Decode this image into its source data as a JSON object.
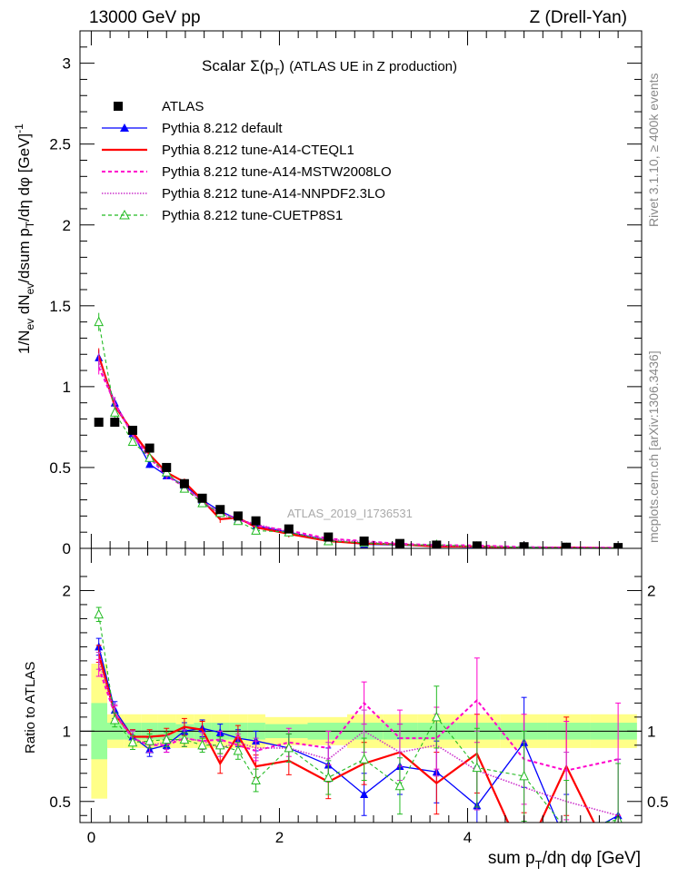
{
  "header": {
    "left": "13000 GeV pp",
    "right": "Z (Drell-Yan)"
  },
  "side": {
    "rivet": "Rivet 3.1.10, ≥ 400k events",
    "mcplots": "mcplots.cern.ch [arXiv:1306.3436]"
  },
  "title": {
    "prefix": "Scalar",
    "sigma": "Σ(p",
    "sub_t": "T",
    "close": ")",
    "suffix": "(ATLAS UE in Z production)"
  },
  "watermark": "ATLAS_2019_I1736531",
  "ylabel_main": {
    "a": "1/N",
    "a_sub": "ev",
    "b": " dN",
    "b_sub": "ev",
    "c": "/dsum p",
    "c_sub": "T",
    "d": "/dη dφ  [GeV]",
    "d_sup": "-1"
  },
  "ylabel_ratio": "Ratio to ATLAS",
  "xlabel": {
    "a": "sum p",
    "a_sub": "T",
    "b": "/dη dφ [GeV]"
  },
  "colors": {
    "atlas": "#000000",
    "default": "#0000ff",
    "cteql1": "#ff0000",
    "mstw": "#ff00cc",
    "nnpdf": "#cc33cc",
    "cuetp8s1": "#22bb22",
    "band_inner": "#99ff99",
    "band_outer": "#ffff88"
  },
  "chart_data": [
    {
      "type": "line",
      "panel": "main",
      "title": "Scalar Σ(pT) (ATLAS UE in Z production)",
      "xlabel": "sum pT/dη dφ [GeV]",
      "ylabel": "1/Nev dNev/dsum pT/dη dφ [GeV]^-1",
      "xlim": [
        -0.12,
        5.85
      ],
      "ylim": [
        0,
        3.2
      ],
      "yticks": [
        0,
        0.5,
        1,
        1.5,
        2,
        2.5,
        3
      ],
      "ytick_labels": [
        "0",
        "0.5",
        "1",
        "1.5",
        "2",
        "2.5",
        "3"
      ],
      "xticks": [
        0,
        2,
        4
      ],
      "x": [
        0.08,
        0.25,
        0.44,
        0.62,
        0.8,
        0.99,
        1.18,
        1.37,
        1.56,
        1.75,
        2.1,
        2.52,
        2.9,
        3.28,
        3.67,
        4.1,
        4.6,
        5.05,
        5.6
      ],
      "legend_position": "top-left",
      "series": [
        {
          "name": "ATLAS",
          "key": "atlas",
          "values": [
            0.78,
            0.78,
            0.73,
            0.62,
            0.5,
            0.4,
            0.31,
            0.24,
            0.2,
            0.17,
            0.12,
            0.07,
            0.045,
            0.03,
            0.02,
            0.015,
            0.01,
            0.007,
            0.005
          ]
        },
        {
          "name": "Pythia 8.212 default",
          "key": "default",
          "values": [
            1.18,
            0.9,
            0.71,
            0.52,
            0.45,
            0.39,
            0.3,
            0.23,
            0.18,
            0.14,
            0.1,
            0.05,
            0.025,
            0.02,
            0.012,
            0.007,
            0.008,
            0.004,
            0.002
          ]
        },
        {
          "name": "Pythia 8.212 tune-A14-CTEQL1",
          "key": "cteql1",
          "values": [
            1.19,
            0.88,
            0.72,
            0.58,
            0.47,
            0.41,
            0.3,
            0.18,
            0.19,
            0.13,
            0.09,
            0.045,
            0.03,
            0.025,
            0.012,
            0.012,
            0.002,
            0.005,
            0.001
          ]
        },
        {
          "name": "Pythia 8.212 tune-A14-MSTW2008LO",
          "key": "mstw",
          "values": [
            1.12,
            0.9,
            0.7,
            0.56,
            0.45,
            0.38,
            0.28,
            0.22,
            0.18,
            0.14,
            0.11,
            0.06,
            0.045,
            0.028,
            0.02,
            0.018,
            0.008,
            0.005,
            0.004
          ]
        },
        {
          "name": "Pythia 8.212 tune-A14-NNPDF2.3LO",
          "key": "nnpdf",
          "values": [
            1.16,
            0.89,
            0.7,
            0.56,
            0.46,
            0.38,
            0.29,
            0.21,
            0.18,
            0.15,
            0.1,
            0.055,
            0.04,
            0.025,
            0.018,
            0.01,
            0.007,
            0.003,
            0.002
          ]
        },
        {
          "name": "Pythia 8.212 tune-CUETP8S1",
          "key": "cuetp8s1",
          "values": [
            1.4,
            0.84,
            0.66,
            0.56,
            0.47,
            0.37,
            0.28,
            0.22,
            0.17,
            0.11,
            0.1,
            0.045,
            0.035,
            0.02,
            0.022,
            0.011,
            0.007,
            0.003,
            0.002
          ]
        }
      ]
    },
    {
      "type": "line",
      "panel": "ratio",
      "ylabel": "Ratio to ATLAS",
      "xlim": [
        -0.12,
        5.85
      ],
      "ylim": [
        0.35,
        2.3
      ],
      "yticks": [
        0.5,
        1,
        2
      ],
      "ytick_labels": [
        "0.5",
        "1",
        "2"
      ],
      "xticks": [
        0,
        2,
        4
      ],
      "xtick_labels": [
        "0",
        "2",
        "4"
      ],
      "x": [
        0.08,
        0.25,
        0.44,
        0.62,
        0.8,
        0.99,
        1.18,
        1.37,
        1.56,
        1.75,
        2.1,
        2.52,
        2.9,
        3.28,
        3.67,
        4.1,
        4.6,
        5.05,
        5.6
      ],
      "bins": [
        0,
        0.17,
        0.35,
        0.53,
        0.71,
        0.9,
        1.09,
        1.28,
        1.47,
        1.66,
        1.85,
        2.3,
        2.72,
        3.1,
        3.47,
        3.88,
        4.35,
        4.85,
        5.3,
        5.8
      ],
      "band_inner": [
        0.2,
        0.06,
        0.06,
        0.06,
        0.06,
        0.05,
        0.06,
        0.06,
        0.06,
        0.06,
        0.05,
        0.06,
        0.06,
        0.06,
        0.06,
        0.06,
        0.06,
        0.06,
        0.06
      ],
      "band_outer": [
        0.48,
        0.12,
        0.12,
        0.12,
        0.12,
        0.12,
        0.12,
        0.12,
        0.12,
        0.12,
        0.1,
        0.1,
        0.12,
        0.12,
        0.12,
        0.12,
        0.12,
        0.12,
        0.12
      ],
      "series": [
        {
          "name": "Pythia 8.212 default",
          "key": "default",
          "values": [
            1.6,
            1.15,
            0.96,
            0.87,
            0.9,
            1.0,
            1.02,
            0.99,
            0.95,
            0.93,
            0.88,
            0.76,
            0.55,
            0.75,
            0.71,
            0.47,
            0.92,
            0.2,
            0.4
          ],
          "errors": [
            0.06,
            0.06,
            0.05,
            0.05,
            0.05,
            0.06,
            0.06,
            0.06,
            0.06,
            0.07,
            0.1,
            0.12,
            0.15,
            0.2,
            0.22,
            0.28,
            0.32,
            0.35,
            0.4
          ]
        },
        {
          "name": "Pythia 8.212 tune-A14-CTEQL1",
          "key": "cteql1",
          "values": [
            1.55,
            1.12,
            0.96,
            0.96,
            0.97,
            1.03,
            1.01,
            0.77,
            0.97,
            0.75,
            0.79,
            0.64,
            0.77,
            0.85,
            0.63,
            0.84,
            0.1,
            0.75,
            0.0
          ],
          "errors": [
            0.06,
            0.06,
            0.05,
            0.05,
            0.05,
            0.06,
            0.06,
            0.07,
            0.07,
            0.08,
            0.1,
            0.12,
            0.15,
            0.2,
            0.22,
            0.28,
            0.32,
            0.35,
            0.4
          ]
        },
        {
          "name": "Pythia 8.212 tune-A14-MSTW2008LO",
          "key": "mstw",
          "values": [
            1.45,
            1.12,
            0.95,
            0.9,
            0.9,
            0.95,
            0.93,
            0.94,
            0.9,
            0.86,
            0.92,
            0.88,
            1.2,
            0.95,
            0.95,
            1.22,
            0.8,
            0.72,
            0.8
          ],
          "errors": [
            0.06,
            0.06,
            0.05,
            0.05,
            0.05,
            0.06,
            0.06,
            0.06,
            0.06,
            0.07,
            0.1,
            0.12,
            0.15,
            0.2,
            0.22,
            0.3,
            0.32,
            0.35,
            0.4
          ]
        },
        {
          "name": "Pythia 8.212 tune-A14-NNPDF2.3LO",
          "key": "nnpdf",
          "values": [
            1.5,
            1.13,
            0.95,
            0.9,
            0.92,
            0.95,
            0.93,
            0.88,
            0.92,
            0.88,
            0.88,
            0.8,
            1.0,
            0.85,
            0.9,
            0.72,
            0.6,
            0.5,
            0.4
          ],
          "errors": [
            0.06,
            0.06,
            0.05,
            0.05,
            0.05,
            0.06,
            0.06,
            0.06,
            0.06,
            0.07,
            0.1,
            0.12,
            0.15,
            0.2,
            0.22,
            0.28,
            0.32,
            0.35,
            0.4
          ]
        },
        {
          "name": "Pythia 8.212 tune-CUETP8S1",
          "key": "cuetp8s1",
          "values": [
            1.83,
            1.08,
            0.92,
            0.93,
            0.94,
            0.94,
            0.9,
            0.9,
            0.86,
            0.65,
            0.88,
            0.67,
            0.8,
            0.61,
            1.1,
            0.74,
            0.68,
            0.3,
            0.37
          ],
          "errors": [
            0.05,
            0.05,
            0.05,
            0.05,
            0.05,
            0.05,
            0.05,
            0.06,
            0.06,
            0.08,
            0.1,
            0.12,
            0.15,
            0.2,
            0.22,
            0.28,
            0.32,
            0.35,
            0.4
          ]
        }
      ]
    }
  ]
}
